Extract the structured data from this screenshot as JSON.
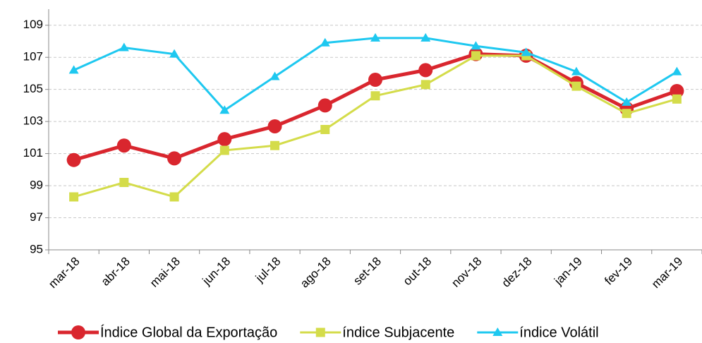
{
  "chart_data": {
    "type": "line",
    "categories": [
      "mar-18",
      "abr-18",
      "mai-18",
      "jun-18",
      "jul-18",
      "ago-18",
      "set-18",
      "out-18",
      "nov-18",
      "dez-18",
      "jan-19",
      "fev-19",
      "mar-19"
    ],
    "series": [
      {
        "name": "Índice Global da Exportação",
        "color": "#d9262e",
        "marker": "circle",
        "values": [
          100.6,
          101.5,
          100.7,
          101.9,
          102.7,
          104.0,
          105.6,
          106.2,
          107.2,
          107.1,
          105.4,
          103.8,
          104.9
        ]
      },
      {
        "name": "índice Subjacente",
        "color": "#d4dc4a",
        "marker": "square",
        "values": [
          98.3,
          99.2,
          98.3,
          101.2,
          101.5,
          102.5,
          104.6,
          105.3,
          107.1,
          107.1,
          105.2,
          103.5,
          104.4
        ]
      },
      {
        "name": "índice Volátil",
        "color": "#1ec8f0",
        "marker": "triangle",
        "values": [
          106.2,
          107.6,
          107.2,
          103.7,
          105.8,
          107.9,
          108.2,
          108.2,
          107.7,
          107.3,
          106.1,
          104.2,
          106.1
        ]
      }
    ],
    "ylim": [
      95,
      110
    ],
    "yticks": [
      95,
      97,
      99,
      101,
      103,
      105,
      107,
      109
    ],
    "grid": true,
    "legend": "bottom"
  }
}
